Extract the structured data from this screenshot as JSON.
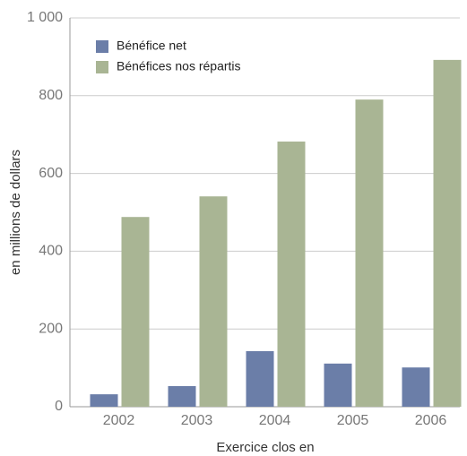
{
  "chart_data": {
    "type": "bar",
    "categories": [
      "2002",
      "2003",
      "2004",
      "2005",
      "2006"
    ],
    "series": [
      {
        "name": "Bénéfice net",
        "color": "#6b7ea8",
        "values": [
          32,
          53,
          143,
          111,
          101
        ]
      },
      {
        "name": "Bénéfices nos répartis",
        "color": "#a9b594",
        "values": [
          488,
          541,
          682,
          790,
          892
        ]
      }
    ],
    "ylim": [
      0,
      1000
    ],
    "yticks": [
      0,
      200,
      400,
      600,
      800,
      {
        "value": 1000,
        "label": "1 000"
      }
    ],
    "ylabel": "en millions de dollars",
    "xlabel": "Exercice clos en",
    "grid": true,
    "legend": "upper left"
  }
}
